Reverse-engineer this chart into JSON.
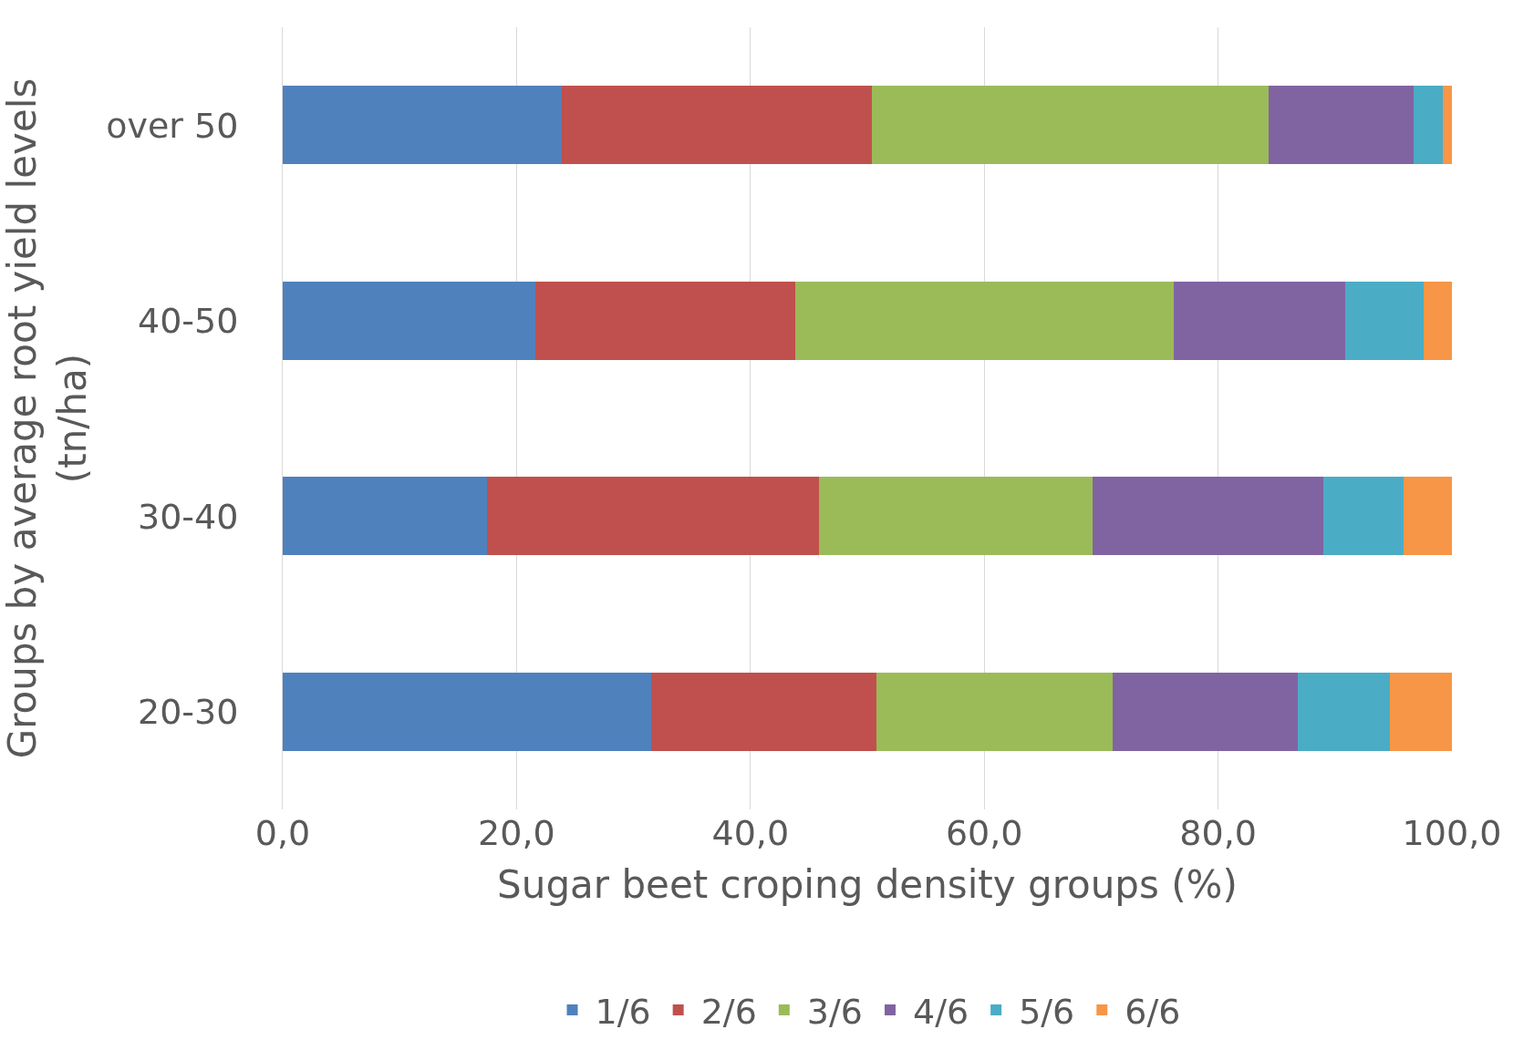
{
  "chart_data": {
    "type": "bar",
    "orientation": "horizontal",
    "stacked": true,
    "xlabel": "Sugar beet croping density groups (%)",
    "ylabel": "Groups by average root yield levels (tn/ha)",
    "categories": [
      "over 50",
      "40-50",
      "30-40",
      "20-30"
    ],
    "series": [
      {
        "name": "1/6",
        "color": "#4f81bd",
        "values": [
          23.9,
          21.6,
          17.5,
          31.5
        ]
      },
      {
        "name": "2/6",
        "color": "#c0504d",
        "values": [
          26.5,
          22.2,
          28.4,
          19.3
        ]
      },
      {
        "name": "3/6",
        "color": "#9bbb59",
        "values": [
          33.9,
          32.4,
          23.4,
          20.2
        ]
      },
      {
        "name": "4/6",
        "color": "#8064a2",
        "values": [
          12.4,
          14.7,
          19.7,
          15.8
        ]
      },
      {
        "name": "5/6",
        "color": "#4bacc6",
        "values": [
          2.5,
          6.7,
          6.9,
          7.9
        ]
      },
      {
        "name": "6/6",
        "color": "#f79646",
        "values": [
          0.8,
          2.4,
          4.1,
          5.3
        ]
      }
    ],
    "xlim": [
      0,
      100
    ],
    "xticks": [
      {
        "value": 0,
        "label": "0,0"
      },
      {
        "value": 20,
        "label": "20,0"
      },
      {
        "value": 40,
        "label": "40,0"
      },
      {
        "value": 60,
        "label": "60,0"
      },
      {
        "value": 80,
        "label": "80,0"
      },
      {
        "value": 100,
        "label": "100,0"
      }
    ],
    "grid": "x",
    "legend": "bottom"
  }
}
